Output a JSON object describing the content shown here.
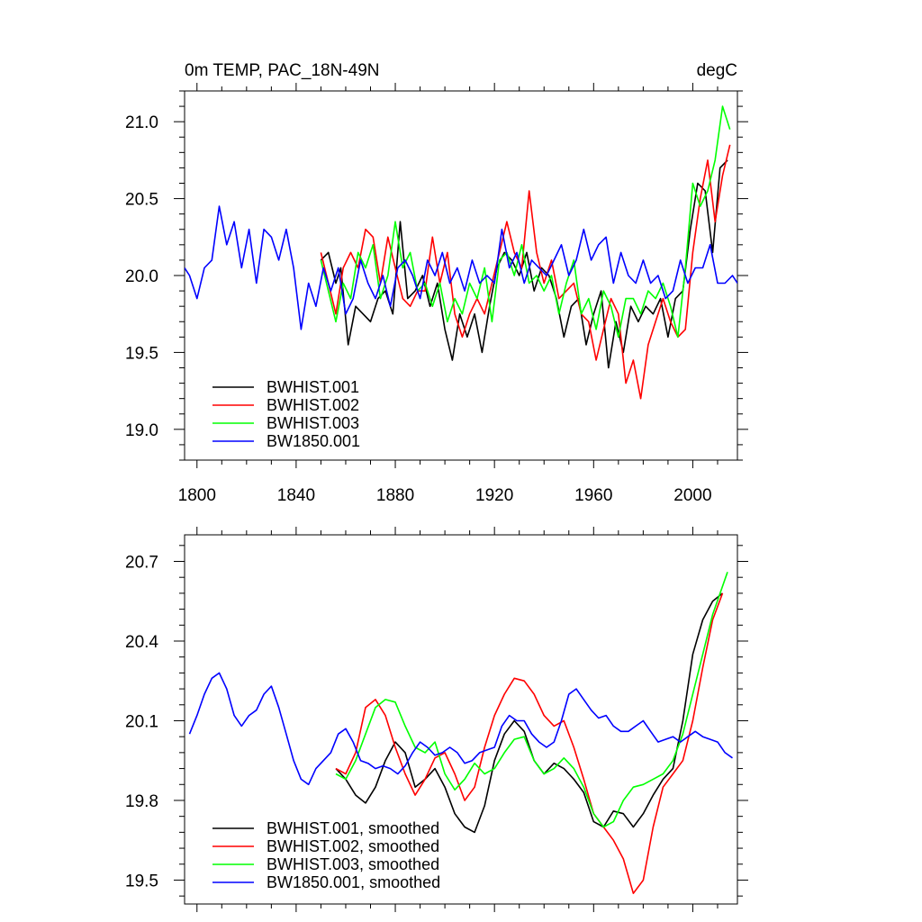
{
  "chart_data": [
    {
      "type": "line",
      "title_left": "0m TEMP, PAC_18N-49N",
      "title_right": "degC",
      "xlabel": "",
      "ylabel": "",
      "xlim": [
        1795,
        2018
      ],
      "ylim": [
        18.8,
        21.2
      ],
      "xticks": [
        1800,
        1840,
        1880,
        1920,
        1960,
        2000
      ],
      "xtick_labels": [
        "1800",
        "1840",
        "1880",
        "1920",
        "1960",
        "2000"
      ],
      "yticks": [
        19.0,
        19.5,
        20.0,
        20.5,
        21.0
      ],
      "ytick_labels": [
        "19.0",
        "19.5",
        "20.0",
        "20.5",
        "21.0"
      ],
      "legend_position": "bottom-left",
      "series": [
        {
          "name": "BWHIST.001",
          "color": "#000000",
          "x": [
            1850,
            1853,
            1856,
            1858,
            1861,
            1864,
            1867,
            1870,
            1873,
            1876,
            1879,
            1882,
            1885,
            1888,
            1891,
            1894,
            1897,
            1900,
            1903,
            1906,
            1909,
            1912,
            1915,
            1918,
            1921,
            1924,
            1927,
            1930,
            1933,
            1936,
            1939,
            1942,
            1945,
            1948,
            1951,
            1954,
            1957,
            1960,
            1963,
            1966,
            1969,
            1972,
            1975,
            1978,
            1981,
            1984,
            1987,
            1990,
            1993,
            1996,
            1999,
            2002,
            2005,
            2008,
            2011,
            2014
          ],
          "values": [
            20.1,
            20.15,
            19.95,
            20.05,
            19.55,
            19.8,
            19.75,
            19.7,
            19.85,
            19.9,
            19.75,
            20.35,
            19.85,
            19.9,
            20.0,
            19.8,
            19.95,
            19.65,
            19.45,
            19.75,
            19.6,
            19.75,
            19.5,
            19.8,
            20.05,
            20.15,
            20.1,
            20.0,
            20.15,
            19.9,
            20.05,
            20.0,
            19.85,
            19.6,
            19.8,
            19.85,
            19.55,
            19.75,
            19.9,
            19.4,
            19.7,
            19.5,
            19.8,
            19.7,
            19.8,
            19.75,
            19.85,
            19.6,
            19.85,
            19.9,
            20.3,
            20.6,
            20.55,
            20.15,
            20.7,
            20.75
          ]
        },
        {
          "name": "BWHIST.002",
          "color": "#ff0000",
          "x": [
            1850,
            1853,
            1856,
            1859,
            1862,
            1865,
            1868,
            1871,
            1874,
            1877,
            1880,
            1883,
            1886,
            1889,
            1892,
            1895,
            1898,
            1901,
            1904,
            1907,
            1910,
            1913,
            1916,
            1919,
            1922,
            1925,
            1928,
            1931,
            1934,
            1937,
            1940,
            1943,
            1946,
            1949,
            1952,
            1955,
            1958,
            1961,
            1964,
            1967,
            1970,
            1973,
            1976,
            1979,
            1982,
            1985,
            1988,
            1991,
            1994,
            1997,
            2000,
            2003,
            2006,
            2009,
            2012,
            2015
          ],
          "values": [
            20.15,
            19.95,
            19.75,
            20.05,
            20.15,
            20.05,
            20.3,
            20.25,
            19.95,
            20.25,
            20.05,
            19.85,
            19.8,
            19.9,
            19.9,
            20.25,
            19.95,
            20.15,
            19.75,
            19.6,
            19.75,
            19.85,
            19.75,
            19.95,
            20.15,
            20.35,
            20.15,
            20.05,
            20.55,
            20.15,
            19.95,
            20.1,
            19.85,
            19.9,
            19.95,
            19.75,
            19.7,
            19.45,
            19.65,
            19.85,
            19.75,
            19.3,
            19.45,
            19.2,
            19.55,
            19.7,
            19.85,
            19.7,
            19.6,
            19.65,
            20.15,
            20.5,
            20.75,
            20.35,
            20.65,
            20.85
          ]
        },
        {
          "name": "BWHIST.003",
          "color": "#00ff00",
          "x": [
            1850,
            1853,
            1856,
            1859,
            1862,
            1865,
            1868,
            1871,
            1874,
            1877,
            1880,
            1883,
            1886,
            1889,
            1892,
            1895,
            1898,
            1901,
            1904,
            1907,
            1910,
            1913,
            1916,
            1919,
            1922,
            1925,
            1928,
            1931,
            1934,
            1937,
            1940,
            1943,
            1946,
            1949,
            1952,
            1955,
            1958,
            1961,
            1964,
            1967,
            1970,
            1973,
            1976,
            1979,
            1982,
            1985,
            1988,
            1991,
            1994,
            1997,
            2000,
            2003,
            2006,
            2009,
            2012,
            2015
          ],
          "values": [
            20.1,
            19.9,
            19.7,
            19.95,
            19.85,
            20.15,
            20.05,
            20.2,
            19.85,
            20.0,
            20.35,
            20.05,
            20.15,
            19.9,
            19.95,
            19.8,
            19.95,
            19.7,
            19.85,
            19.75,
            19.95,
            19.85,
            20.05,
            19.7,
            20.1,
            20.15,
            20.0,
            20.2,
            19.95,
            20.0,
            19.9,
            20.0,
            19.75,
            19.95,
            20.1,
            19.75,
            19.85,
            19.65,
            19.9,
            19.8,
            19.6,
            19.85,
            19.85,
            19.75,
            19.9,
            19.85,
            19.95,
            19.8,
            19.6,
            20.05,
            20.6,
            20.45,
            20.55,
            20.75,
            21.1,
            20.95
          ]
        },
        {
          "name": "BW1850.001",
          "color": "#0000ff",
          "x": [
            1795,
            1797,
            1800,
            1803,
            1806,
            1809,
            1812,
            1815,
            1818,
            1821,
            1824,
            1827,
            1830,
            1833,
            1836,
            1839,
            1842,
            1845,
            1848,
            1851,
            1854,
            1857,
            1860,
            1863,
            1866,
            1869,
            1872,
            1875,
            1878,
            1881,
            1884,
            1887,
            1890,
            1893,
            1896,
            1899,
            1902,
            1905,
            1908,
            1911,
            1914,
            1917,
            1920,
            1923,
            1926,
            1929,
            1932,
            1935,
            1938,
            1941,
            1944,
            1947,
            1950,
            1953,
            1956,
            1959,
            1962,
            1965,
            1968,
            1971,
            1974,
            1977,
            1980,
            1983,
            1986,
            1989,
            1992,
            1995,
            1998,
            2001,
            2004,
            2007,
            2010,
            2013,
            2016,
            2018
          ],
          "values": [
            20.05,
            20.0,
            19.85,
            20.05,
            20.1,
            20.45,
            20.2,
            20.35,
            20.05,
            20.3,
            19.95,
            20.3,
            20.25,
            20.1,
            20.3,
            20.05,
            19.65,
            19.95,
            19.8,
            20.05,
            19.9,
            20.05,
            19.75,
            19.85,
            20.1,
            19.95,
            19.85,
            20.0,
            19.8,
            20.05,
            20.1,
            20.0,
            19.85,
            20.1,
            20.0,
            20.15,
            19.95,
            20.05,
            19.9,
            20.1,
            19.95,
            20.0,
            19.95,
            20.3,
            20.05,
            20.15,
            19.95,
            20.1,
            20.05,
            20.0,
            20.1,
            20.2,
            20.0,
            20.1,
            20.3,
            20.1,
            20.2,
            20.25,
            19.95,
            20.15,
            20.0,
            19.95,
            20.1,
            19.95,
            20.0,
            19.85,
            19.9,
            20.1,
            19.95,
            20.05,
            20.05,
            20.2,
            19.95,
            19.95,
            20.0,
            19.95
          ]
        }
      ]
    },
    {
      "type": "line",
      "title_left": "",
      "title_right": "",
      "xlabel": "",
      "ylabel": "",
      "xlim": [
        1795,
        2018
      ],
      "ylim": [
        19.41,
        20.8
      ],
      "xticks": [
        1800,
        1840,
        1880,
        1920,
        1960,
        2000
      ],
      "yticks": [
        19.5,
        19.8,
        20.1,
        20.4,
        20.7
      ],
      "ytick_labels": [
        "19.5",
        "19.8",
        "20.1",
        "20.4",
        "20.7"
      ],
      "legend_position": "bottom-left",
      "series": [
        {
          "name": "BWHIST.001, smoothed",
          "color": "#000000",
          "x": [
            1856,
            1860,
            1864,
            1868,
            1872,
            1876,
            1880,
            1884,
            1888,
            1892,
            1896,
            1900,
            1904,
            1908,
            1912,
            1916,
            1920,
            1924,
            1928,
            1932,
            1936,
            1940,
            1944,
            1948,
            1952,
            1956,
            1960,
            1964,
            1968,
            1972,
            1976,
            1980,
            1984,
            1988,
            1992,
            1996,
            2000,
            2004,
            2008,
            2012
          ],
          "values": [
            19.92,
            19.88,
            19.82,
            19.79,
            19.85,
            19.95,
            20.02,
            19.98,
            19.85,
            19.88,
            19.92,
            19.85,
            19.75,
            19.7,
            19.68,
            19.78,
            19.95,
            20.05,
            20.1,
            20.06,
            19.95,
            19.9,
            19.94,
            19.92,
            19.88,
            19.83,
            19.72,
            19.7,
            19.76,
            19.75,
            19.7,
            19.75,
            19.82,
            19.88,
            19.92,
            20.1,
            20.35,
            20.48,
            20.55,
            20.58
          ]
        },
        {
          "name": "BWHIST.002, smoothed",
          "color": "#ff0000",
          "x": [
            1856,
            1860,
            1864,
            1868,
            1872,
            1876,
            1880,
            1884,
            1888,
            1892,
            1896,
            1900,
            1904,
            1908,
            1912,
            1916,
            1920,
            1924,
            1928,
            1932,
            1936,
            1940,
            1944,
            1948,
            1952,
            1956,
            1960,
            1964,
            1968,
            1972,
            1976,
            1980,
            1984,
            1988,
            1992,
            1996,
            2000,
            2004,
            2008,
            2012
          ],
          "values": [
            19.92,
            19.9,
            19.98,
            20.15,
            20.18,
            20.12,
            20.0,
            19.9,
            19.82,
            19.88,
            19.96,
            19.98,
            19.9,
            19.8,
            19.85,
            20.0,
            20.12,
            20.2,
            20.26,
            20.25,
            20.2,
            20.12,
            20.08,
            20.1,
            20.0,
            19.88,
            19.75,
            19.7,
            19.65,
            19.58,
            19.45,
            19.5,
            19.7,
            19.85,
            19.9,
            19.95,
            20.1,
            20.3,
            20.48,
            20.58
          ]
        },
        {
          "name": "BWHIST.003, smoothed",
          "color": "#00ff00",
          "x": [
            1856,
            1860,
            1864,
            1868,
            1872,
            1876,
            1880,
            1884,
            1888,
            1892,
            1896,
            1900,
            1904,
            1908,
            1912,
            1916,
            1920,
            1924,
            1928,
            1932,
            1936,
            1940,
            1944,
            1948,
            1952,
            1956,
            1960,
            1964,
            1968,
            1972,
            1976,
            1980,
            1984,
            1988,
            1992,
            1996,
            2000,
            2004,
            2008,
            2014
          ],
          "values": [
            19.9,
            19.88,
            19.95,
            20.05,
            20.15,
            20.18,
            20.17,
            20.08,
            20.0,
            19.98,
            20.02,
            19.9,
            19.84,
            19.88,
            19.94,
            19.9,
            19.92,
            19.98,
            20.03,
            20.04,
            19.95,
            19.9,
            19.92,
            19.96,
            19.92,
            19.85,
            19.75,
            19.7,
            19.72,
            19.8,
            19.85,
            19.86,
            19.88,
            19.9,
            19.95,
            20.05,
            20.2,
            20.35,
            20.5,
            20.66
          ]
        },
        {
          "name": "BW1850.001, smoothed",
          "color": "#0000ff",
          "x": [
            1797,
            1800,
            1803,
            1806,
            1809,
            1812,
            1815,
            1818,
            1821,
            1824,
            1827,
            1830,
            1833,
            1836,
            1839,
            1842,
            1845,
            1848,
            1851,
            1854,
            1857,
            1860,
            1863,
            1866,
            1869,
            1872,
            1875,
            1878,
            1881,
            1884,
            1887,
            1890,
            1893,
            1896,
            1899,
            1902,
            1905,
            1908,
            1911,
            1914,
            1917,
            1920,
            1923,
            1926,
            1929,
            1932,
            1935,
            1938,
            1941,
            1944,
            1947,
            1950,
            1953,
            1956,
            1959,
            1962,
            1965,
            1968,
            1971,
            1974,
            1977,
            1980,
            1983,
            1986,
            1989,
            1992,
            1995,
            1998,
            2001,
            2004,
            2007,
            2010,
            2013,
            2016
          ],
          "values": [
            20.05,
            20.12,
            20.2,
            20.26,
            20.28,
            20.22,
            20.12,
            20.08,
            20.12,
            20.14,
            20.2,
            20.23,
            20.15,
            20.05,
            19.95,
            19.88,
            19.86,
            19.92,
            19.95,
            19.98,
            20.05,
            20.07,
            20.02,
            19.95,
            19.94,
            19.92,
            19.93,
            19.92,
            19.9,
            19.93,
            19.98,
            20.02,
            20.0,
            19.97,
            19.98,
            20.0,
            19.98,
            19.94,
            19.95,
            19.98,
            19.99,
            20.0,
            20.08,
            20.12,
            20.1,
            20.1,
            20.05,
            20.02,
            20.0,
            20.02,
            20.1,
            20.2,
            20.22,
            20.18,
            20.14,
            20.11,
            20.12,
            20.08,
            20.06,
            20.06,
            20.08,
            20.1,
            20.06,
            20.02,
            20.03,
            20.04,
            20.02,
            20.04,
            20.06,
            20.04,
            20.03,
            20.02,
            19.98,
            19.96
          ]
        }
      ]
    }
  ]
}
